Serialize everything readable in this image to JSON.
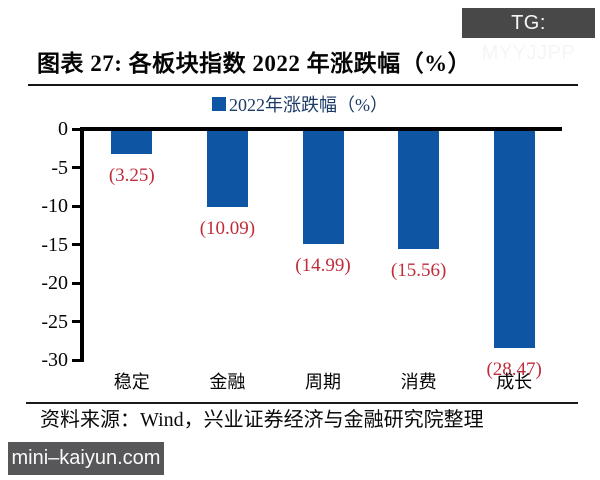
{
  "page": {
    "tg_badge": "TG: MYYJJPP",
    "watermark": "mini–kaiyun.com"
  },
  "figure": {
    "title": "图表 27: 各板块指数 2022 年涨跌幅（%）",
    "source_note": "资料来源：Wind，兴业证券经济与金融研究院整理"
  },
  "legend": {
    "label": "2022年涨跌幅（%）"
  },
  "colors": {
    "bar": "#0e55a4",
    "data_label": "#c02b3a",
    "legend_text": "#1c3b66",
    "axis": "#000000",
    "tg_badge_bg": "#484848",
    "watermark_bg": "#57575a"
  },
  "chart_data": {
    "type": "bar",
    "title": "各板块指数 2022 年涨跌幅（%）",
    "categories": [
      "稳定",
      "金融",
      "周期",
      "消费",
      "成长"
    ],
    "series": [
      {
        "name": "2022年涨跌幅（%）",
        "values": [
          -3.25,
          -10.09,
          -14.99,
          -15.56,
          -28.47
        ]
      }
    ],
    "data_labels": [
      "(3.25)",
      "(10.09)",
      "(14.99)",
      "(15.56)",
      "(28.47)"
    ],
    "xlabel": "",
    "ylabel": "",
    "ylim": [
      -30,
      0
    ],
    "yticks": [
      0,
      -5,
      -10,
      -15,
      -20,
      -25,
      -30
    ],
    "grid": false,
    "legend_position": "top-center",
    "bar_color": "#0e55a4",
    "value_label_color": "#c02b3a"
  }
}
